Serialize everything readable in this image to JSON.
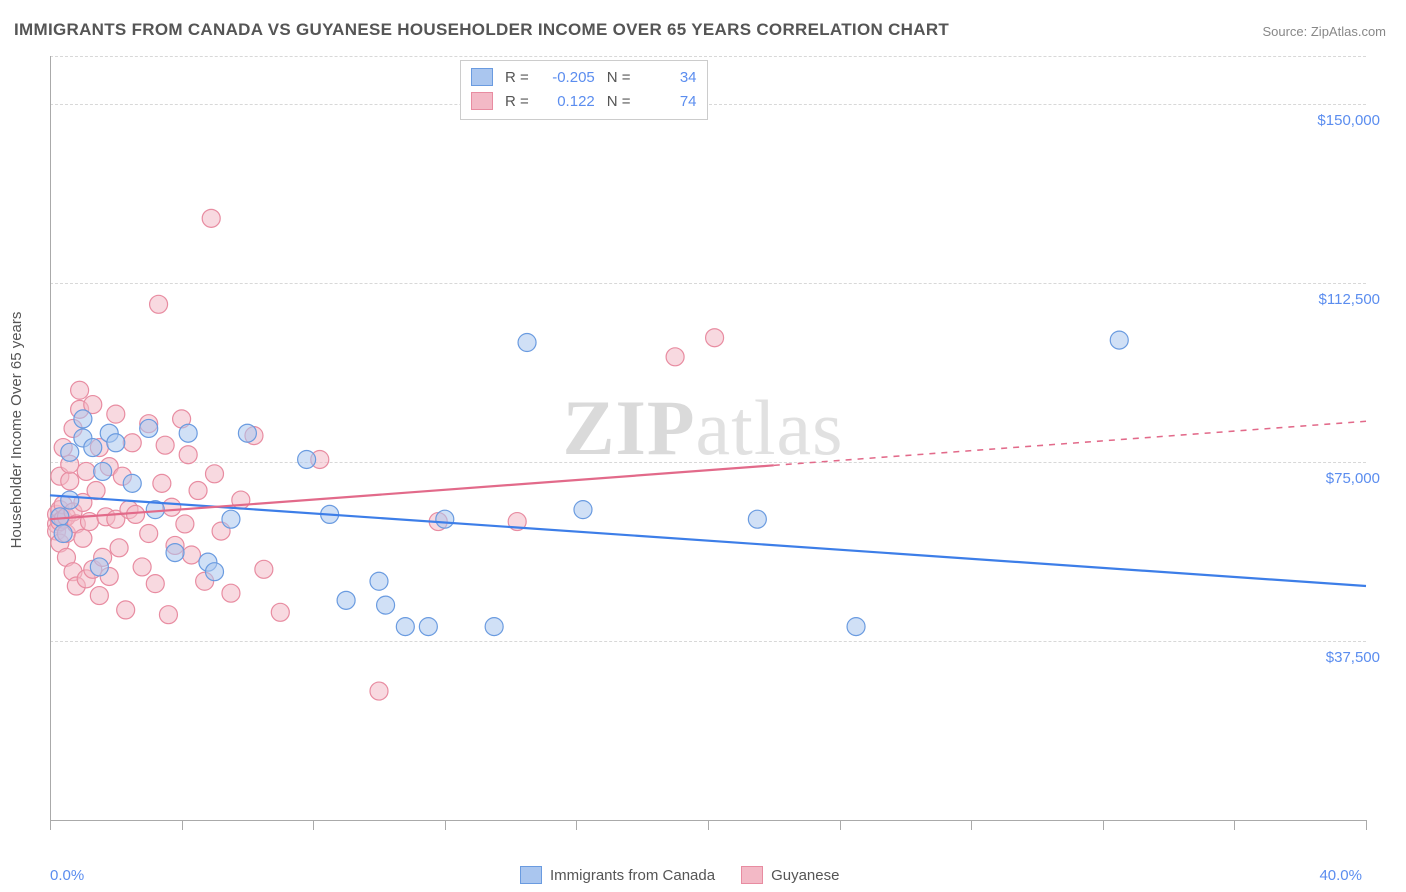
{
  "title": "IMMIGRANTS FROM CANADA VS GUYANESE HOUSEHOLDER INCOME OVER 65 YEARS CORRELATION CHART",
  "source_label": "Source: ZipAtlas.com",
  "watermark": {
    "part1": "ZIP",
    "part2": "atlas"
  },
  "y_axis_label": "Householder Income Over 65 years",
  "chart": {
    "type": "scatter-with-regression",
    "xlim": [
      0,
      40
    ],
    "ylim": [
      0,
      160000
    ],
    "x_ticks_pct": [
      0,
      4,
      8,
      12,
      16,
      20,
      24,
      28,
      32,
      36,
      40
    ],
    "x_tick_labels_shown": {
      "0": "0.0%",
      "40": "40.0%"
    },
    "y_gridlines": [
      37500,
      75000,
      112500,
      150000
    ],
    "y_grid_labels": {
      "37500": "$37,500",
      "75000": "$75,000",
      "112500": "$112,500",
      "150000": "$150,000"
    },
    "background_color": "#ffffff",
    "grid_color": "#d8d8d8",
    "axis_color": "#aaaaaa",
    "marker_radius": 9,
    "marker_opacity": 0.55,
    "line_width": 2.2,
    "series": [
      {
        "name": "Immigrants from Canada",
        "fill": "#aac6ef",
        "stroke": "#6a9be0",
        "line_color": "#3d7ee8",
        "R": "-0.205",
        "N": "34",
        "regression": {
          "y_at_x0": 68000,
          "y_at_x40": 49000,
          "dash_after_x": 40
        },
        "points": [
          [
            0.3,
            63500
          ],
          [
            0.4,
            60000
          ],
          [
            0.6,
            77000
          ],
          [
            0.6,
            67000
          ],
          [
            1.0,
            80000
          ],
          [
            1.0,
            84000
          ],
          [
            1.3,
            78000
          ],
          [
            1.5,
            53000
          ],
          [
            1.6,
            73000
          ],
          [
            1.8,
            81000
          ],
          [
            2.0,
            79000
          ],
          [
            2.5,
            70500
          ],
          [
            3.0,
            82000
          ],
          [
            3.2,
            65000
          ],
          [
            3.8,
            56000
          ],
          [
            4.2,
            81000
          ],
          [
            4.8,
            54000
          ],
          [
            5.0,
            52000
          ],
          [
            5.5,
            63000
          ],
          [
            6.0,
            81000
          ],
          [
            7.8,
            75500
          ],
          [
            8.5,
            64000
          ],
          [
            9.0,
            46000
          ],
          [
            10.0,
            50000
          ],
          [
            10.2,
            45000
          ],
          [
            10.8,
            40500
          ],
          [
            11.5,
            40500
          ],
          [
            12.0,
            63000
          ],
          [
            13.5,
            40500
          ],
          [
            14.5,
            100000
          ],
          [
            16.2,
            65000
          ],
          [
            21.5,
            63000
          ],
          [
            24.5,
            40500
          ],
          [
            32.5,
            100500
          ]
        ]
      },
      {
        "name": "Guyanese",
        "fill": "#f3b9c6",
        "stroke": "#e88ca1",
        "line_color": "#e26a8a",
        "R": "0.122",
        "N": "74",
        "regression": {
          "y_at_x0": 63000,
          "y_at_x40": 83500,
          "dash_after_x": 22
        },
        "points": [
          [
            0.2,
            62000
          ],
          [
            0.2,
            60500
          ],
          [
            0.2,
            64000
          ],
          [
            0.3,
            62500
          ],
          [
            0.3,
            65000
          ],
          [
            0.3,
            72000
          ],
          [
            0.3,
            58000
          ],
          [
            0.4,
            63000
          ],
          [
            0.4,
            66000
          ],
          [
            0.4,
            78000
          ],
          [
            0.5,
            63500
          ],
          [
            0.5,
            55000
          ],
          [
            0.5,
            60000
          ],
          [
            0.6,
            71000
          ],
          [
            0.6,
            74500
          ],
          [
            0.7,
            64500
          ],
          [
            0.7,
            52000
          ],
          [
            0.7,
            82000
          ],
          [
            0.8,
            62000
          ],
          [
            0.8,
            49000
          ],
          [
            0.9,
            86000
          ],
          [
            0.9,
            90000
          ],
          [
            1.0,
            59000
          ],
          [
            1.0,
            66500
          ],
          [
            1.1,
            50500
          ],
          [
            1.1,
            73000
          ],
          [
            1.2,
            62500
          ],
          [
            1.3,
            52500
          ],
          [
            1.3,
            87000
          ],
          [
            1.4,
            69000
          ],
          [
            1.5,
            78000
          ],
          [
            1.5,
            47000
          ],
          [
            1.6,
            55000
          ],
          [
            1.7,
            63500
          ],
          [
            1.8,
            74000
          ],
          [
            1.8,
            51000
          ],
          [
            2.0,
            63000
          ],
          [
            2.0,
            85000
          ],
          [
            2.1,
            57000
          ],
          [
            2.2,
            72000
          ],
          [
            2.3,
            44000
          ],
          [
            2.4,
            65000
          ],
          [
            2.5,
            79000
          ],
          [
            2.6,
            64000
          ],
          [
            2.8,
            53000
          ],
          [
            3.0,
            83000
          ],
          [
            3.0,
            60000
          ],
          [
            3.2,
            49500
          ],
          [
            3.3,
            108000
          ],
          [
            3.4,
            70500
          ],
          [
            3.5,
            78500
          ],
          [
            3.6,
            43000
          ],
          [
            3.7,
            65500
          ],
          [
            3.8,
            57500
          ],
          [
            4.0,
            84000
          ],
          [
            4.1,
            62000
          ],
          [
            4.2,
            76500
          ],
          [
            4.3,
            55500
          ],
          [
            4.5,
            69000
          ],
          [
            4.7,
            50000
          ],
          [
            4.9,
            126000
          ],
          [
            5.0,
            72500
          ],
          [
            5.2,
            60500
          ],
          [
            5.5,
            47500
          ],
          [
            5.8,
            67000
          ],
          [
            6.2,
            80500
          ],
          [
            6.5,
            52500
          ],
          [
            7.0,
            43500
          ],
          [
            8.2,
            75500
          ],
          [
            10.0,
            27000
          ],
          [
            11.8,
            62500
          ],
          [
            14.2,
            62500
          ],
          [
            19.0,
            97000
          ],
          [
            20.2,
            101000
          ]
        ]
      }
    ]
  },
  "legend_labels": {
    "r": "R =",
    "n": "N ="
  }
}
